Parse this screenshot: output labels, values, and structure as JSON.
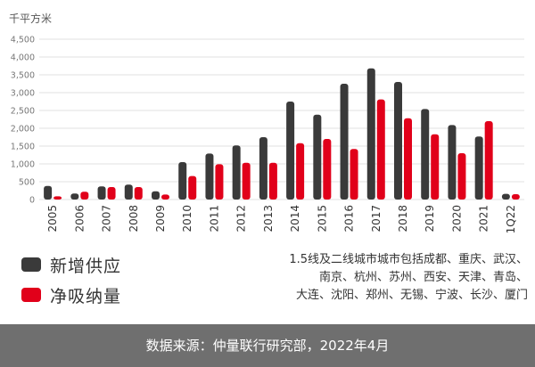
{
  "chart_data": {
    "type": "bar",
    "ylabel": "千平方米",
    "ylim": [
      0,
      4500
    ],
    "yticks": [
      "4,500",
      "4,000",
      "3,500",
      "3,000",
      "2,500",
      "2,000",
      "1,500",
      "1,000",
      "500",
      "0"
    ],
    "grid": true,
    "categories": [
      "2005",
      "2006",
      "2007",
      "2008",
      "2009",
      "2010",
      "2011",
      "2012",
      "2013",
      "2014",
      "2015",
      "2016",
      "2017",
      "2018",
      "2019",
      "2020",
      "2021",
      "1Q22"
    ],
    "series": [
      {
        "name": "新增供应",
        "color": "#3a3a3a",
        "values": [
          380,
          170,
          370,
          420,
          230,
          1050,
          1290,
          1520,
          1750,
          2750,
          2380,
          3250,
          3680,
          3300,
          2540,
          2090,
          1770,
          160
        ]
      },
      {
        "name": "净吸纳量",
        "color": "#e1001a",
        "values": [
          90,
          220,
          350,
          350,
          140,
          660,
          990,
          1030,
          1030,
          1580,
          1700,
          1420,
          2810,
          2280,
          1830,
          1300,
          2200,
          150
        ]
      }
    ],
    "legend_position": "bottom-left"
  },
  "note": {
    "lines": [
      "1.5线及二线城市城市包括成都、重庆、武汉、",
      "南京、杭州、苏州、西安、天津、青岛、",
      "大连、沈阳、郑州、无锡、宁波、长沙、厦门"
    ]
  },
  "source": "数据来源：仲量联行研究部，2022年4月"
}
